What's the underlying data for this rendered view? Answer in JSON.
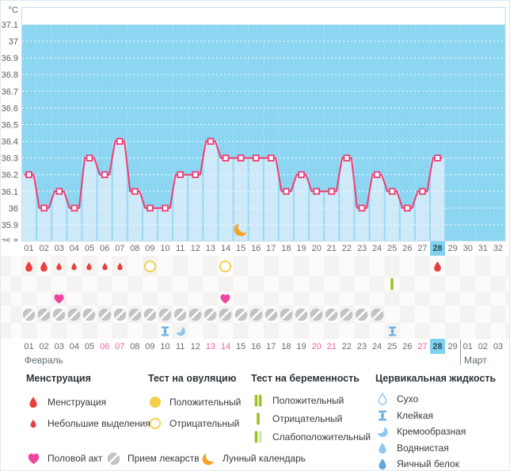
{
  "chart_data": {
    "type": "line",
    "title": "",
    "ylabel": "°C",
    "unit_label": "°C",
    "ylim": [
      35.8,
      37.1
    ],
    "ytick_step": 0.1,
    "yticks": [
      "37.1",
      "37",
      "36.9",
      "36.8",
      "36.7",
      "36.6",
      "36.5",
      "36.4",
      "36.3",
      "36.2",
      "36.1",
      "36",
      "35.9",
      "35.8"
    ],
    "grid": true,
    "x_total_days": 32,
    "cycle_day_labels": [
      "01",
      "02",
      "03",
      "04",
      "05",
      "06",
      "07",
      "08",
      "09",
      "10",
      "11",
      "12",
      "13",
      "14",
      "15",
      "16",
      "17",
      "18",
      "19",
      "20",
      "21",
      "22",
      "23",
      "24",
      "25",
      "26",
      "27",
      "28",
      "29",
      "30",
      "31",
      "32"
    ],
    "current_cycle_day": "28",
    "series": [
      {
        "name": "temperature",
        "values": [
          36.2,
          36.0,
          36.1,
          36.0,
          36.3,
          36.2,
          36.4,
          36.1,
          36.0,
          36.0,
          36.2,
          36.2,
          36.4,
          36.3,
          36.3,
          36.3,
          36.3,
          36.1,
          36.2,
          36.1,
          36.1,
          36.3,
          36.0,
          36.2,
          36.1,
          36.0,
          36.1,
          36.3,
          null,
          null,
          null,
          null
        ]
      }
    ],
    "annotations": [
      {
        "day": 15,
        "type": "new-moon"
      }
    ]
  },
  "events": {
    "menstruation_days": [
      1,
      2,
      28
    ],
    "spotting_days": [
      3,
      4,
      5,
      6,
      7
    ],
    "ovulation_test_negative_days": [
      9,
      14
    ],
    "pregnancy_test_negative_days": [
      25
    ],
    "intercourse_days": [
      3,
      14
    ],
    "medication_days": [
      1,
      2,
      3,
      4,
      5,
      6,
      7,
      8,
      9,
      10,
      11,
      12,
      13,
      14,
      15,
      16,
      17,
      18,
      19,
      20,
      21,
      22,
      23,
      24
    ],
    "cervical_fluid": [
      {
        "day": 10,
        "type": "sticky"
      },
      {
        "day": 11,
        "type": "creamy"
      },
      {
        "day": 25,
        "type": "sticky"
      }
    ]
  },
  "calendar": {
    "dates": [
      "01",
      "02",
      "03",
      "04",
      "05",
      "06",
      "07",
      "08",
      "09",
      "10",
      "11",
      "12",
      "13",
      "14",
      "15",
      "16",
      "17",
      "18",
      "19",
      "20",
      "21",
      "22",
      "23",
      "24",
      "25",
      "26",
      "27",
      "28",
      "29",
      "01",
      "02",
      "03"
    ],
    "weekend_dates": [
      "06",
      "07",
      "13",
      "14",
      "20",
      "21",
      "27"
    ],
    "current_date_index": 27,
    "month_split_index": 29,
    "month_start_label": "Февраль",
    "month_end_label": "Март"
  },
  "legend": {
    "groups": [
      {
        "title": "Менструация",
        "items": [
          {
            "icon": "drop-red-large",
            "label": "Менструация"
          },
          {
            "icon": "drop-red-small",
            "label": "Небольшие выделения"
          }
        ]
      },
      {
        "title": "Тест на овуляцию",
        "items": [
          {
            "icon": "circle-yellow-filled",
            "label": "Положительный"
          },
          {
            "icon": "circle-yellow-outline",
            "label": "Отрицательный"
          }
        ]
      },
      {
        "title": "Тест на беременность",
        "items": [
          {
            "icon": "bars-green-two",
            "label": "Положительный"
          },
          {
            "icon": "bar-green-one",
            "label": "Отрицательный"
          },
          {
            "icon": "bars-green-weak",
            "label": "Слабоположительный"
          }
        ]
      },
      {
        "title": "Цервикальная жидкость",
        "items": [
          {
            "icon": "drop-outline-blue",
            "label": "Сухо"
          },
          {
            "icon": "sticky-blue",
            "label": "Клейкая"
          },
          {
            "icon": "creamy-blue",
            "label": "Кремообразная"
          },
          {
            "icon": "watery-blue",
            "label": "Водянистая"
          },
          {
            "icon": "egg-blue",
            "label": "Яичный белок"
          }
        ]
      }
    ],
    "extra_items": [
      {
        "icon": "heart-pink",
        "label": "Половой акт"
      },
      {
        "icon": "pill-gray",
        "label": "Прием лекарств"
      },
      {
        "icon": "moon-orange",
        "label": "Лунный календарь"
      }
    ]
  },
  "colors": {
    "chart_bg": "#8dd6f2",
    "bar_fill": "#cee9f8",
    "plot_border": "#c0dbe9",
    "line_pink": "#ee3d72",
    "highlight_day": "#7fd2ef",
    "axis_text": "#5a5a5a",
    "weekend_text": "#f0639a",
    "red_drop": "#e93f3f",
    "yellow": "#f3cf4a",
    "green": "#9cc222",
    "green_pale": "#d9e7ae",
    "heart_pink": "#f0459e",
    "pill_gray": "#c3c3c3",
    "moon_orange": "#f4a426",
    "cervical_blue": "#6fb3e0",
    "cervical_light": "#8fc8ef",
    "cervical_deep": "#64a9da"
  }
}
